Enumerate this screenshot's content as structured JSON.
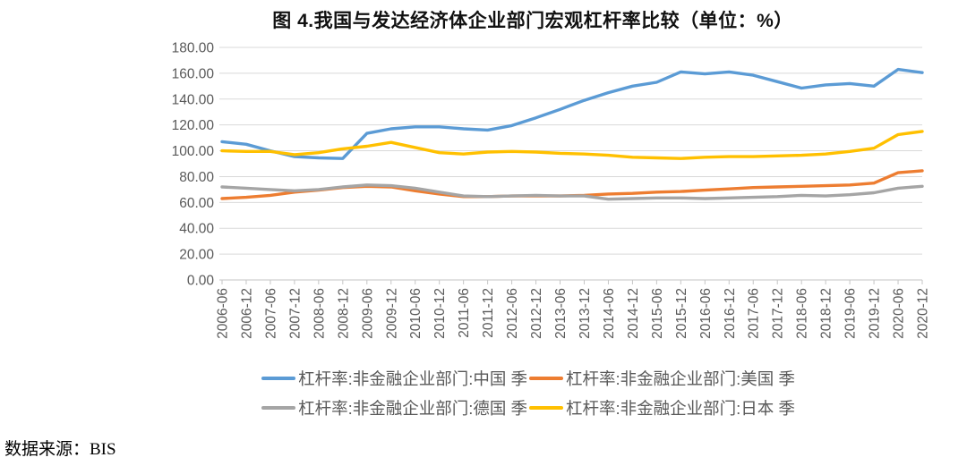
{
  "page": {
    "source_note": "数据来源：BIS"
  },
  "chart_data": {
    "type": "line",
    "title": "图 4.我国与发达经济体企业部门宏观杠杆率比较（单位：%）",
    "unit": "%",
    "xlabel": "",
    "ylabel": "",
    "ylim": [
      0,
      180
    ],
    "ytick_step": 20,
    "ytick_format": "two-decimals",
    "grid": "horizontal",
    "legend_position": "bottom",
    "legend_rows": 2,
    "axis_label_color": "#595959",
    "gridline_color": "#D9D9D9",
    "axis_line_color": "#C6C6C6",
    "categories": [
      "2006-06",
      "2006-12",
      "2007-06",
      "2007-12",
      "2008-06",
      "2008-12",
      "2009-06",
      "2009-12",
      "2010-06",
      "2010-12",
      "2011-06",
      "2011-12",
      "2012-06",
      "2012-12",
      "2013-06",
      "2013-12",
      "2014-06",
      "2014-12",
      "2015-06",
      "2015-12",
      "2016-06",
      "2016-12",
      "2017-06",
      "2017-12",
      "2018-06",
      "2018-12",
      "2019-06",
      "2019-12",
      "2020-06",
      "2020-12"
    ],
    "series": [
      {
        "key": "china",
        "name": "杠杆率:非金融企业部门:中国 季",
        "color": "#5B9BD5",
        "values": [
          107,
          105,
          100,
          95.5,
          94.5,
          94,
          113.5,
          117,
          118.5,
          118.5,
          117,
          116,
          119.5,
          125.5,
          132,
          139,
          145,
          150,
          153,
          161,
          159.5,
          161,
          158.5,
          153.5,
          148.5,
          151,
          152,
          150,
          163,
          160.5
        ]
      },
      {
        "key": "usa",
        "name": "杠杆率:非金融企业部门:美国 季",
        "color": "#ED7D31",
        "values": [
          63,
          64,
          65.5,
          68,
          69.5,
          71.5,
          72.5,
          72,
          69,
          66.5,
          64.5,
          64.5,
          65,
          65,
          65,
          65.5,
          66.5,
          67,
          68,
          68.5,
          69.5,
          70.5,
          71.5,
          72,
          72.5,
          73,
          73.5,
          75,
          83,
          84.5
        ]
      },
      {
        "key": "germany",
        "name": "杠杆率:非金融企业部门:德国 季",
        "color": "#A5A5A5",
        "values": [
          72,
          71,
          70,
          69,
          70,
          72,
          73.5,
          73,
          71,
          68,
          65,
          64.5,
          65,
          65.5,
          65,
          65,
          62.5,
          63,
          63.5,
          63.5,
          63,
          63.5,
          64,
          64.5,
          65.5,
          65,
          66,
          67.5,
          71,
          72.5
        ]
      },
      {
        "key": "japan",
        "name": "杠杆率:非金融企业部门:日本 季",
        "color": "#FFC000",
        "values": [
          100,
          99.5,
          99.5,
          97,
          98.5,
          101.5,
          103.5,
          106.5,
          102.5,
          98.5,
          97.5,
          99,
          99.5,
          99,
          98,
          97.5,
          96.5,
          95,
          94.5,
          94,
          95,
          95.5,
          95.5,
          96,
          96.5,
          97.5,
          99.5,
          102,
          112.5,
          115
        ]
      }
    ]
  }
}
